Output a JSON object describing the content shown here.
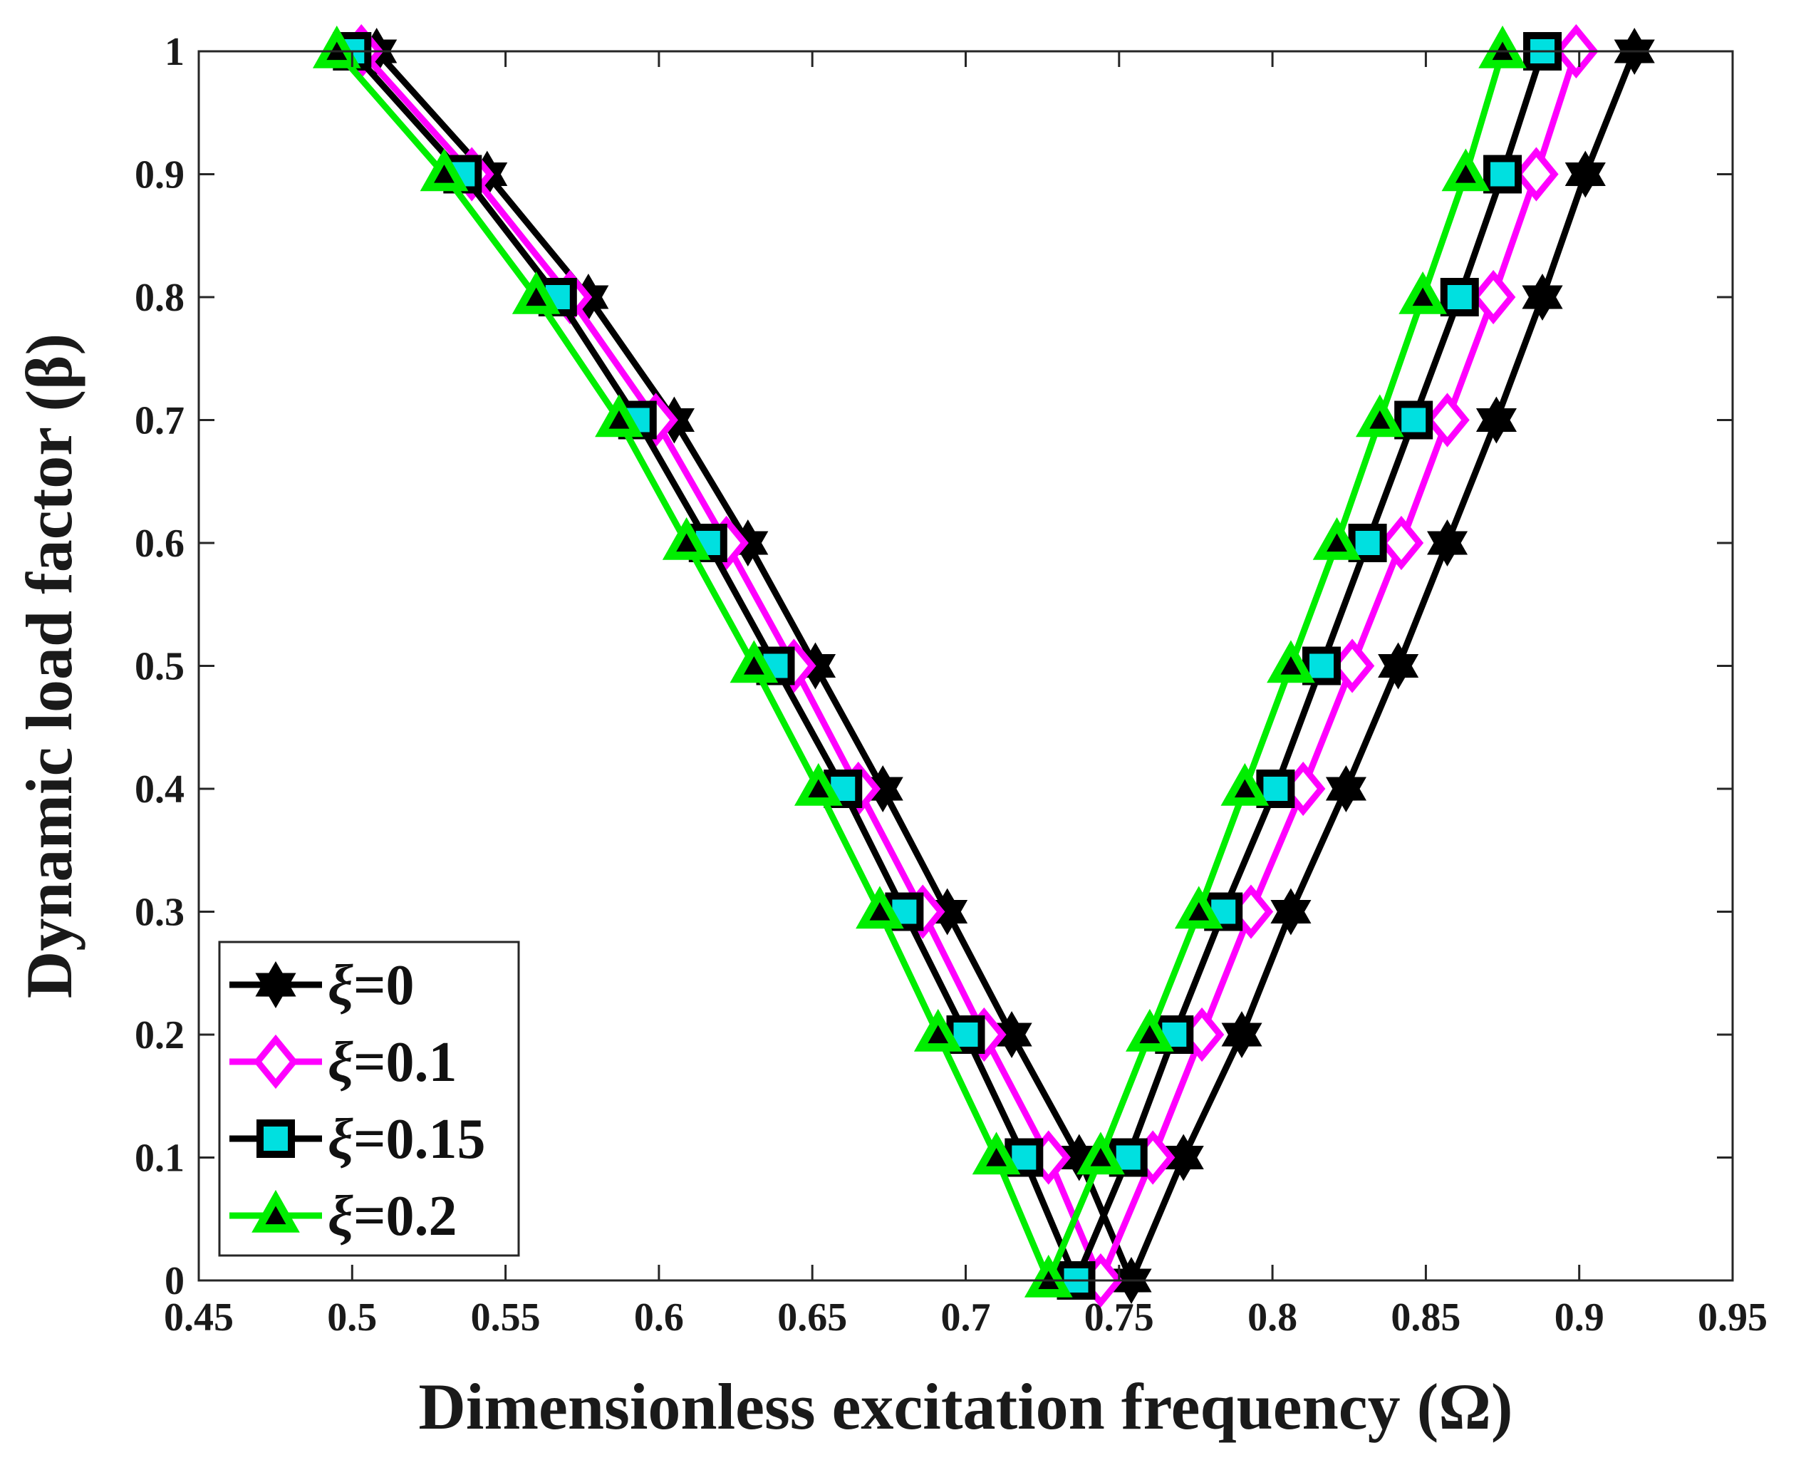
{
  "chart_data": {
    "type": "line",
    "xlabel": "Dimensionless excitation frequency (Ω)",
    "ylabel": "Dynamic load factor (β)",
    "xlim": [
      0.45,
      0.95
    ],
    "ylim": [
      0,
      1
    ],
    "xticks": [
      "0.45",
      "0.5",
      "0.55",
      "0.6",
      "0.65",
      "0.7",
      "0.75",
      "0.8",
      "0.85",
      "0.9",
      "0.95"
    ],
    "yticks": [
      "0",
      "0.1",
      "0.2",
      "0.3",
      "0.4",
      "0.5",
      "0.6",
      "0.7",
      "0.8",
      "0.9",
      "1"
    ],
    "grid": false,
    "legend_position": "bottom-left",
    "y": [
      0,
      0.1,
      0.2,
      0.3,
      0.4,
      0.5,
      0.6,
      0.7,
      0.8,
      0.9,
      1.0
    ],
    "series": [
      {
        "name": "ξ=0",
        "symbol": "ξ",
        "value_label": "=0",
        "color": "#000000",
        "marker": "hexagram",
        "marker_fill": "#000000",
        "left_x": [
          0.754,
          0.737,
          0.715,
          0.694,
          0.673,
          0.651,
          0.629,
          0.605,
          0.577,
          0.544,
          0.508
        ],
        "right_x": [
          0.754,
          0.771,
          0.79,
          0.806,
          0.824,
          0.841,
          0.857,
          0.873,
          0.888,
          0.902,
          0.918
        ]
      },
      {
        "name": "ξ=0.1",
        "symbol": "ξ",
        "value_label": "=0.1",
        "color": "#ff00ff",
        "marker": "diamond",
        "marker_fill": "#ffffff",
        "left_x": [
          0.744,
          0.727,
          0.706,
          0.686,
          0.665,
          0.644,
          0.622,
          0.599,
          0.571,
          0.539,
          0.503
        ],
        "right_x": [
          0.744,
          0.761,
          0.777,
          0.793,
          0.81,
          0.826,
          0.842,
          0.857,
          0.872,
          0.886,
          0.899
        ]
      },
      {
        "name": "ξ=0.15",
        "symbol": "ξ",
        "value_label": "=0.15",
        "color": "#000000",
        "marker": "square",
        "marker_fill": "#00e0e0",
        "left_x": [
          0.736,
          0.719,
          0.7,
          0.68,
          0.66,
          0.638,
          0.616,
          0.593,
          0.567,
          0.536,
          0.5
        ],
        "right_x": [
          0.736,
          0.753,
          0.768,
          0.784,
          0.801,
          0.816,
          0.831,
          0.846,
          0.861,
          0.875,
          0.888
        ]
      },
      {
        "name": "ξ=0.2",
        "symbol": "ξ",
        "value_label": "=0.2",
        "color": "#00ee00",
        "marker": "triangle",
        "marker_fill": "#000000",
        "left_x": [
          0.727,
          0.71,
          0.691,
          0.672,
          0.652,
          0.631,
          0.609,
          0.587,
          0.56,
          0.53,
          0.495
        ],
        "right_x": [
          0.727,
          0.744,
          0.76,
          0.776,
          0.791,
          0.806,
          0.821,
          0.835,
          0.849,
          0.863,
          0.875
        ]
      }
    ]
  }
}
